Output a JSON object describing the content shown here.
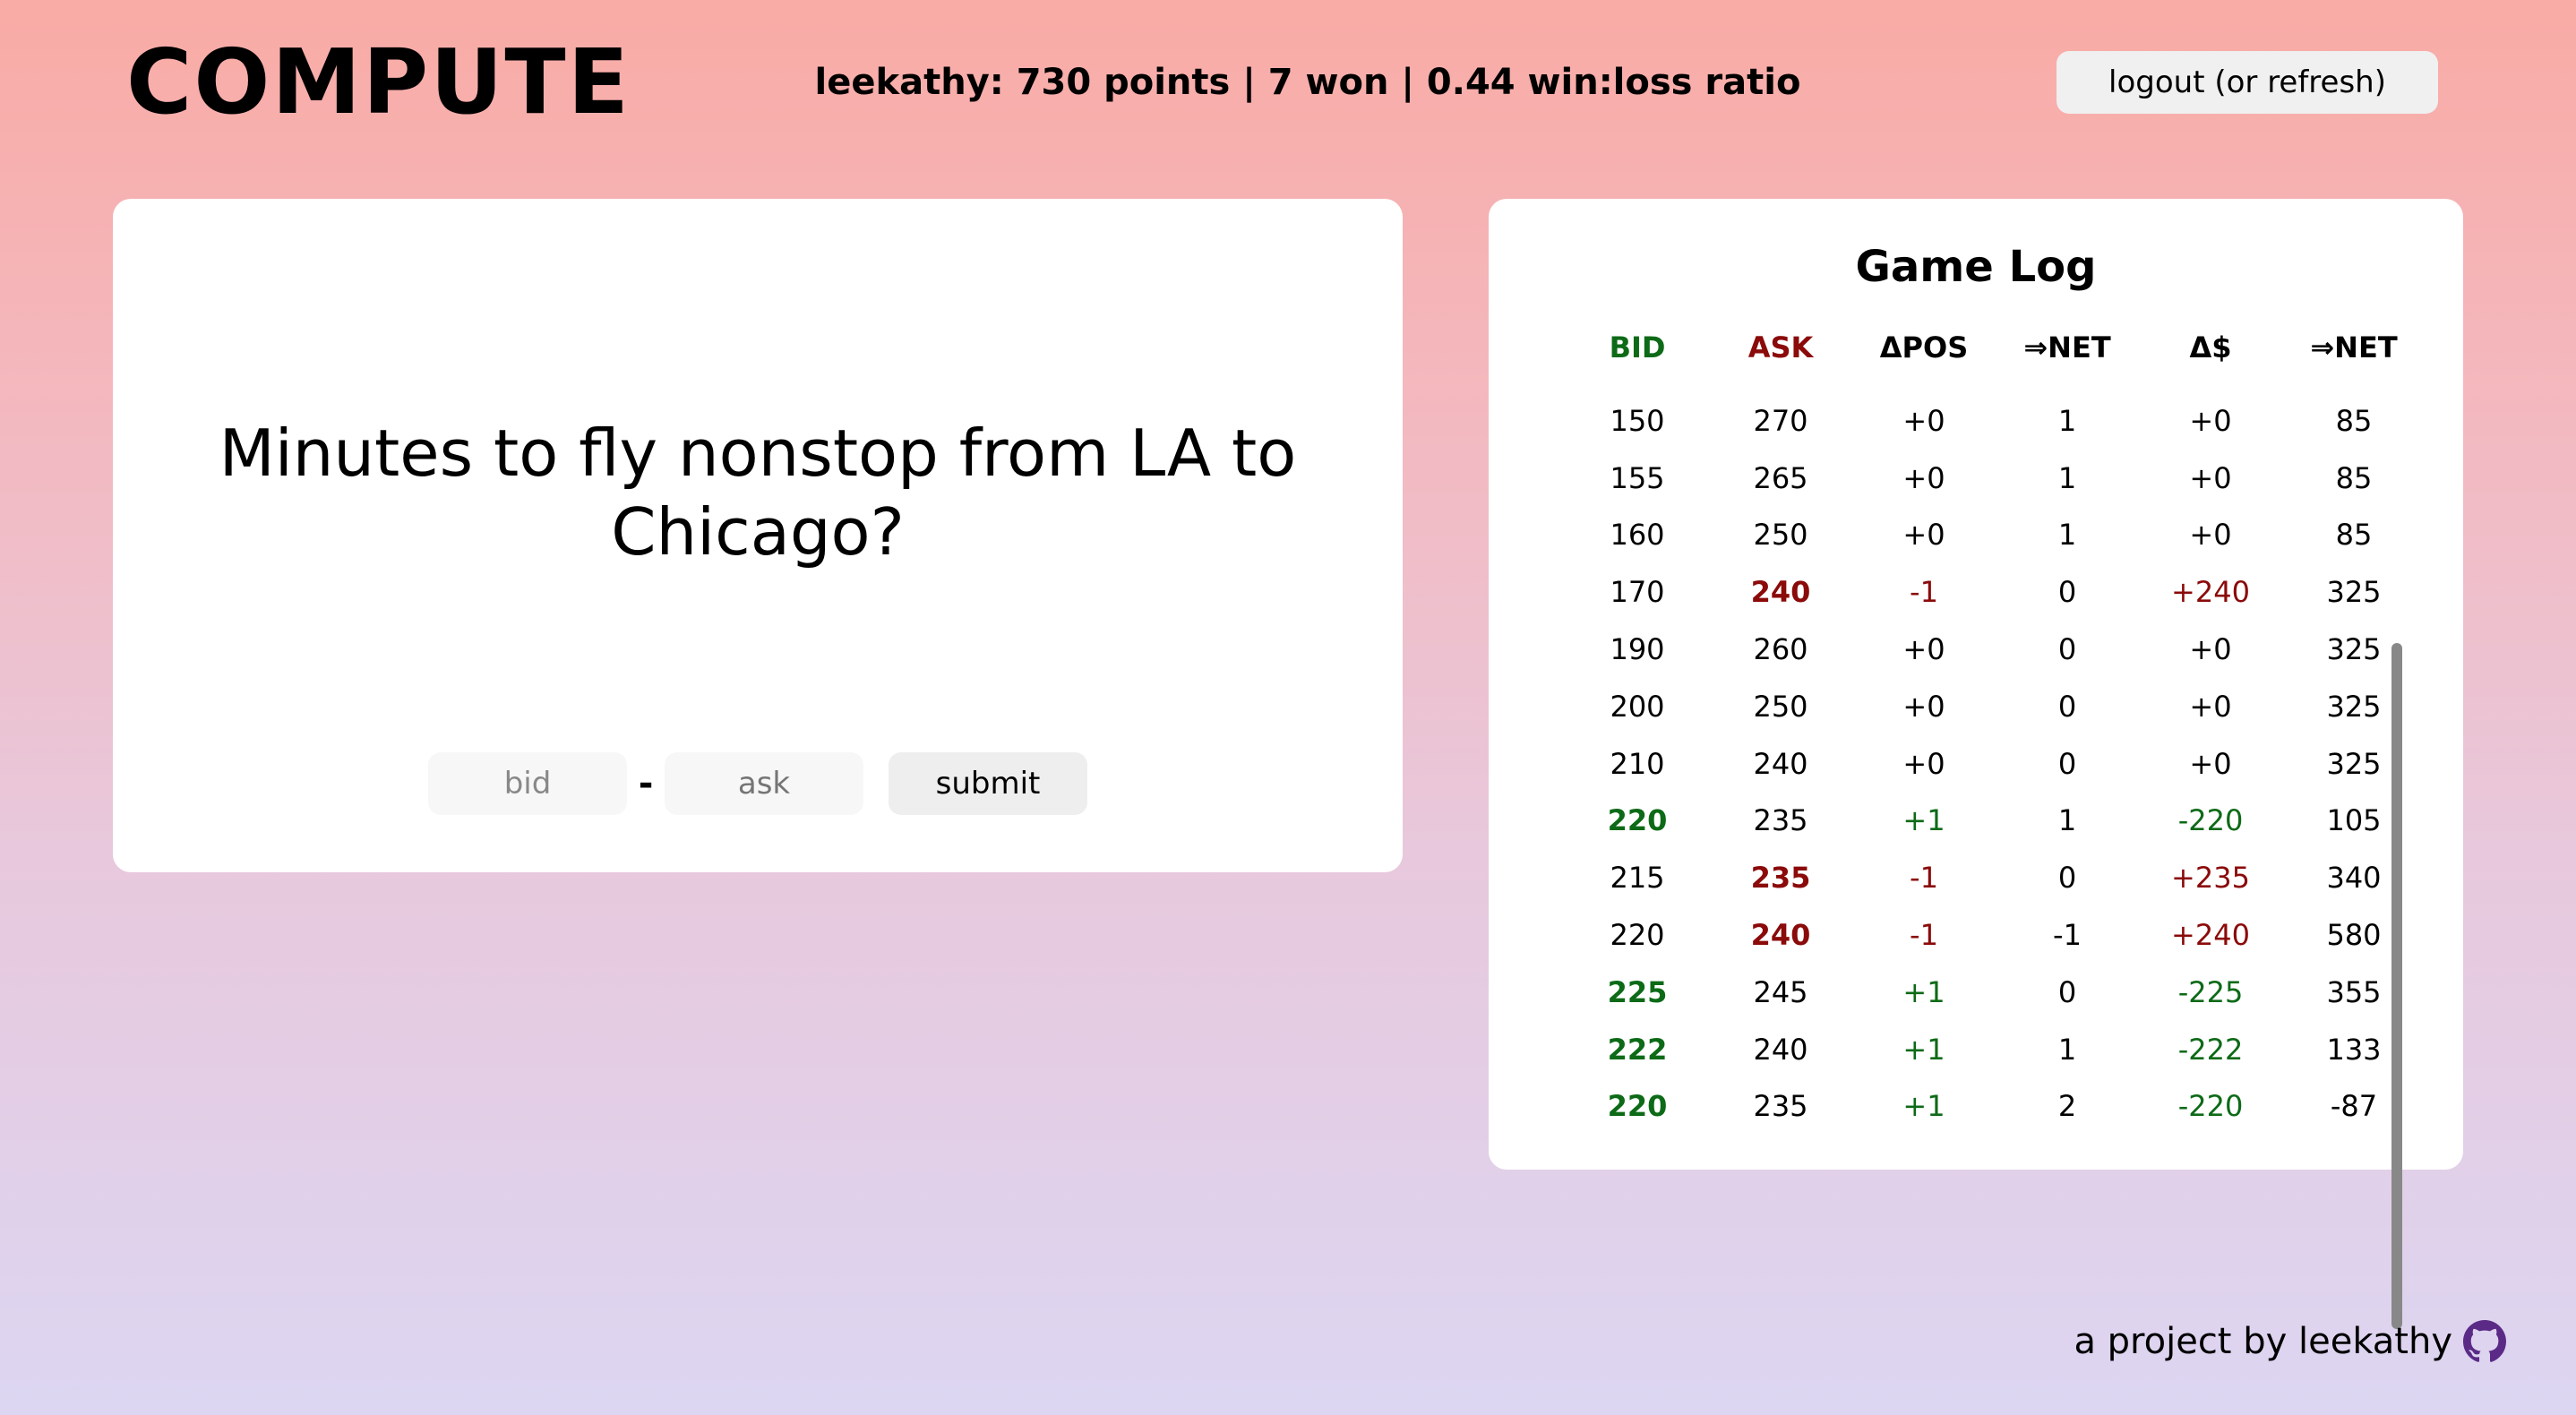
{
  "app": {
    "logo": "COMPUTE",
    "stats": "leekathy: 730 points | 7 won | 0.44 win:loss ratio",
    "logout_label": "logout (or refresh)"
  },
  "question": {
    "text": "Minutes to fly nonstop from LA to Chicago?",
    "bid_value": "bid",
    "ask_placeholder": "ask",
    "dash": "-",
    "submit_label": "submit"
  },
  "game_log": {
    "title": "Game Log",
    "headers": [
      "BID",
      "ASK",
      "ΔPOS",
      "⇒NET",
      "Δ$",
      "⇒NET"
    ],
    "rows": [
      [
        "150",
        "270",
        "+0",
        "1",
        "+0",
        "85"
      ],
      [
        "155",
        "265",
        "+0",
        "1",
        "+0",
        "85"
      ],
      [
        "160",
        "250",
        "+0",
        "1",
        "+0",
        "85"
      ],
      [
        "170",
        "240",
        "-1",
        "0",
        "+240",
        "325"
      ],
      [
        "190",
        "260",
        "+0",
        "0",
        "+0",
        "325"
      ],
      [
        "200",
        "250",
        "+0",
        "0",
        "+0",
        "325"
      ],
      [
        "210",
        "240",
        "+0",
        "0",
        "+0",
        "325"
      ],
      [
        "220",
        "235",
        "+1",
        "1",
        "-220",
        "105"
      ],
      [
        "215",
        "235",
        "-1",
        "0",
        "+235",
        "340"
      ],
      [
        "220",
        "240",
        "-1",
        "-1",
        "+240",
        "580"
      ],
      [
        "225",
        "245",
        "+1",
        "0",
        "-225",
        "355"
      ],
      [
        "222",
        "240",
        "+1",
        "1",
        "-222",
        "133"
      ],
      [
        "220",
        "235",
        "+1",
        "2",
        "-220",
        "-87"
      ]
    ],
    "row_types": [
      "none",
      "none",
      "none",
      "sell",
      "none",
      "none",
      "none",
      "buy",
      "sell",
      "sell",
      "buy",
      "buy",
      "buy"
    ],
    "colors": {
      "buy": "#0d6a17",
      "sell": "#8b0a0a"
    }
  },
  "footer": {
    "text": "a project by leekathy",
    "icon": "github-icon"
  }
}
